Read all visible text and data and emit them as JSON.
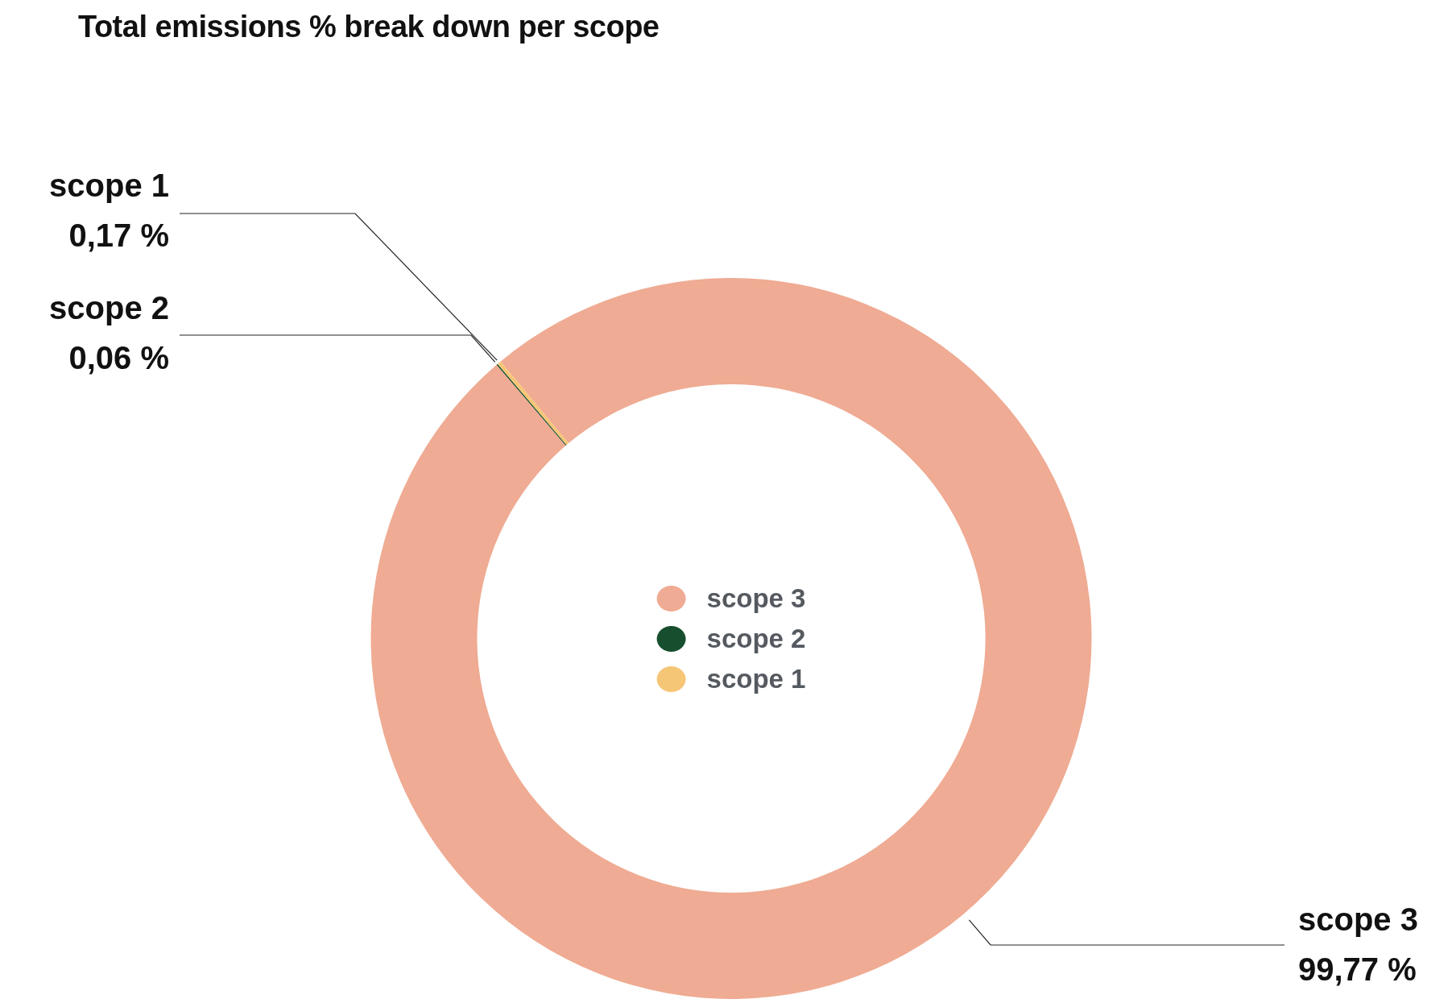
{
  "chart_data": {
    "type": "donut",
    "title": "Total emissions % break down per scope",
    "categories": [
      "scope 3",
      "scope 2",
      "scope 1"
    ],
    "values": [
      99.77,
      0.06,
      0.17
    ],
    "colors": [
      "#efab93",
      "#174f2e",
      "#f6c677"
    ],
    "value_labels": [
      "99,77 %",
      "0,06 %",
      "0,17 %"
    ],
    "legend": "center"
  }
}
